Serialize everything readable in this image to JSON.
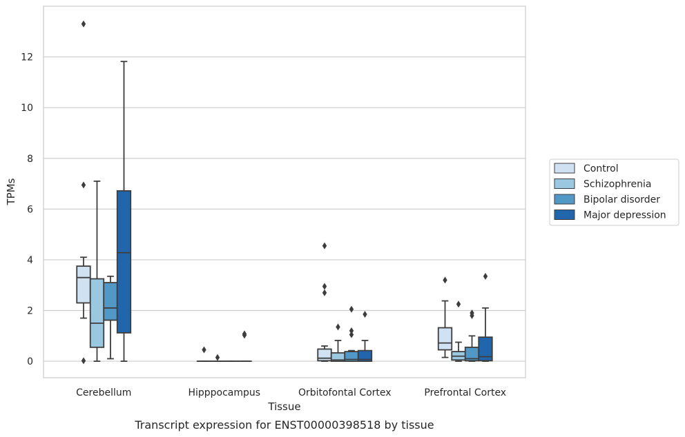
{
  "chart_data": {
    "type": "box",
    "title": "",
    "caption": "Transcript expression for ENST00000398518 by tissue",
    "xlabel": "Tissue",
    "ylabel": "TPMs",
    "ylim": [
      -0.65,
      14.0
    ],
    "yticks": [
      0,
      2,
      4,
      6,
      8,
      10,
      12
    ],
    "grid": true,
    "legend_position": "right",
    "categories": [
      "Cerebellum",
      "Hipppocampus",
      "Orbitofontal Cortex",
      "Prefrontal Cortex"
    ],
    "series": [
      {
        "name": "Control",
        "color": "#d0e1f2",
        "boxes": [
          {
            "whislo": 1.7,
            "q1": 2.3,
            "med": 3.3,
            "q3": 3.75,
            "whishi": 4.1,
            "fliers": [
              13.3,
              6.95,
              0.02
            ]
          },
          {
            "whislo": 0,
            "q1": 0,
            "med": 0,
            "q3": 0,
            "whishi": 0,
            "fliers": [
              0.45
            ]
          },
          {
            "whislo": 0,
            "q1": 0.02,
            "med": 0.12,
            "q3": 0.48,
            "whishi": 0.6,
            "fliers": [
              4.55,
              2.95,
              2.7
            ]
          },
          {
            "whislo": 0.15,
            "q1": 0.45,
            "med": 0.72,
            "q3": 1.32,
            "whishi": 2.38,
            "fliers": [
              3.2
            ]
          }
        ]
      },
      {
        "name": "Schizophrenia",
        "color": "#9ac8e0",
        "boxes": [
          {
            "whislo": 0,
            "q1": 0.55,
            "med": 1.5,
            "q3": 3.25,
            "whishi": 7.1,
            "fliers": []
          },
          {
            "whislo": 0,
            "q1": 0,
            "med": 0,
            "q3": 0,
            "whishi": 0,
            "fliers": [
              0.15
            ]
          },
          {
            "whislo": 0,
            "q1": 0,
            "med": 0.05,
            "q3": 0.33,
            "whishi": 0.82,
            "fliers": [
              1.35
            ]
          },
          {
            "whislo": 0,
            "q1": 0.05,
            "med": 0.2,
            "q3": 0.38,
            "whishi": 0.75,
            "fliers": [
              2.25
            ]
          }
        ]
      },
      {
        "name": "Bipolar disorder",
        "color": "#5198c7",
        "boxes": [
          {
            "whislo": 0.1,
            "q1": 1.62,
            "med": 2.1,
            "q3": 3.1,
            "whishi": 3.35,
            "fliers": []
          },
          {
            "whislo": 0,
            "q1": 0,
            "med": 0,
            "q3": 0,
            "whishi": 0,
            "fliers": []
          },
          {
            "whislo": 0,
            "q1": 0,
            "med": 0.07,
            "q3": 0.38,
            "whishi": 0.42,
            "fliers": [
              2.05,
              1.2,
              1.05
            ]
          },
          {
            "whislo": 0,
            "q1": 0.02,
            "med": 0.1,
            "q3": 0.55,
            "whishi": 1.0,
            "fliers": [
              1.9,
              1.8
            ]
          }
        ]
      },
      {
        "name": "Major depression",
        "color": "#2166ac",
        "boxes": [
          {
            "whislo": 0,
            "q1": 1.12,
            "med": 4.28,
            "q3": 6.72,
            "whishi": 11.82,
            "fliers": []
          },
          {
            "whislo": 0,
            "q1": 0,
            "med": 0,
            "q3": 0,
            "whishi": 0,
            "fliers": [
              1.08,
              1.03
            ]
          },
          {
            "whislo": 0,
            "q1": 0,
            "med": 0.07,
            "q3": 0.42,
            "whishi": 0.82,
            "fliers": [
              1.85
            ]
          },
          {
            "whislo": 0,
            "q1": 0.02,
            "med": 0.18,
            "q3": 0.95,
            "whishi": 2.1,
            "fliers": [
              3.35
            ]
          }
        ]
      }
    ]
  }
}
